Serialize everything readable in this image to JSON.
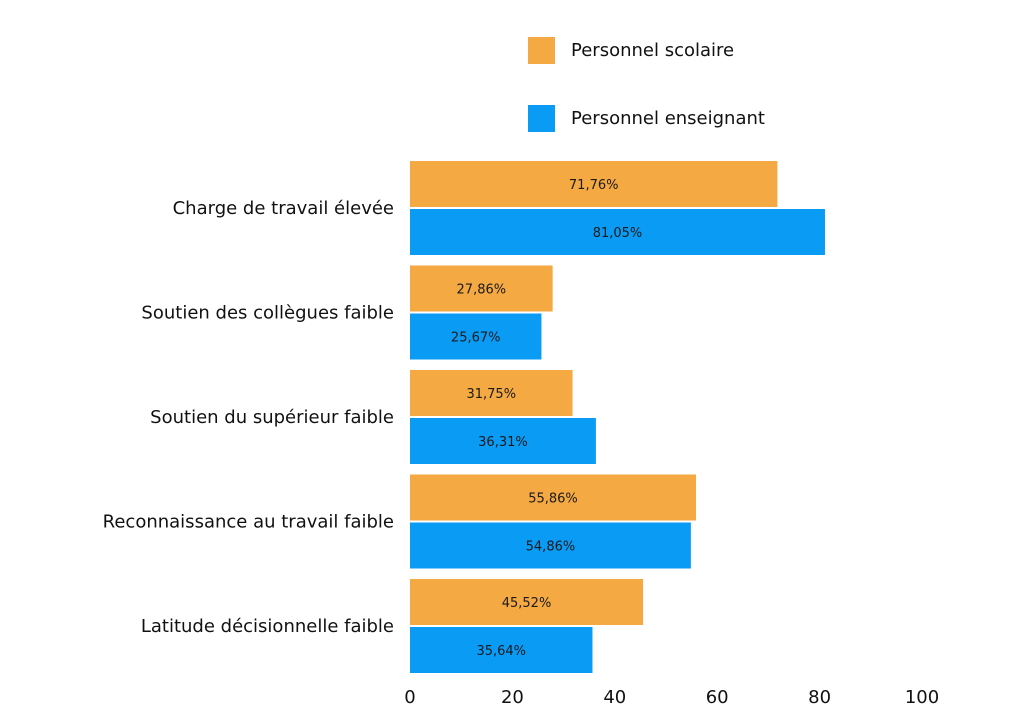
{
  "chart_data": {
    "type": "bar",
    "orientation": "horizontal",
    "categories": [
      "Charge de travail élevée",
      "Soutien des collègues faible",
      "Soutien du supérieur faible",
      "Reconnaissance au travail faible",
      "Latitude décisionnelle faible"
    ],
    "series": [
      {
        "name": "Personnel scolaire",
        "color": "#F5A942",
        "values": [
          71.76,
          27.86,
          31.75,
          55.86,
          45.52
        ],
        "labels": [
          "71,76%",
          "27,86%",
          "31,75%",
          "55,86%",
          "45,52%"
        ]
      },
      {
        "name": "Personnel enseignant",
        "color": "#0A9BF5",
        "values": [
          81.05,
          25.67,
          36.31,
          54.86,
          35.64
        ],
        "labels": [
          "81,05%",
          "25,67%",
          "36,31%",
          "54,86%",
          "35,64%"
        ]
      }
    ],
    "xlim": [
      0,
      100
    ],
    "xticks": [
      0,
      20,
      40,
      60,
      80,
      100
    ],
    "xtick_labels": [
      "0",
      "20",
      "40",
      "60",
      "80",
      "100"
    ],
    "grid": false,
    "legend_position": "top"
  }
}
